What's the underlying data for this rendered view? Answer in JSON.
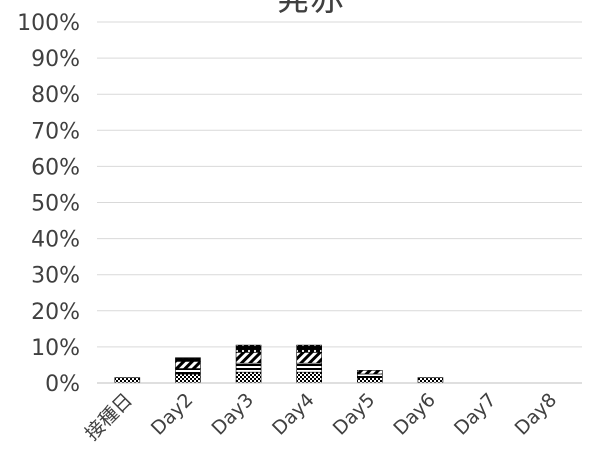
{
  "chart_data": {
    "type": "bar",
    "stacked": true,
    "title": "発赤",
    "categories": [
      "接種日",
      "Day2",
      "Day3",
      "Day4",
      "Day5",
      "Day6",
      "Day7",
      "Day8"
    ],
    "yticks": [
      "0%",
      "10%",
      "20%",
      "30%",
      "40%",
      "50%",
      "60%",
      "70%",
      "80%",
      "90%",
      "100%"
    ],
    "ylim": [
      0,
      100
    ],
    "grid": true,
    "legend": "none",
    "series": [
      {
        "pattern": "fine-check",
        "values": [
          1.5,
          2.5,
          3.0,
          3.0,
          1.5,
          1.5,
          0,
          0
        ]
      },
      {
        "pattern": "horizontal-lines",
        "values": [
          0,
          1.5,
          2.5,
          2.5,
          1.0,
          0,
          0,
          0
        ]
      },
      {
        "pattern": "diagonal-lines",
        "values": [
          0,
          2.0,
          3.0,
          3.0,
          1.0,
          0,
          0,
          0
        ]
      },
      {
        "pattern": "dots-on-black",
        "values": [
          0,
          1.0,
          2.0,
          2.0,
          0,
          0,
          0,
          0
        ]
      }
    ],
    "colors": {
      "axis": "#bfbfbf",
      "grid": "#d9d9d9",
      "text": "#404040",
      "ink": "#000000"
    }
  }
}
